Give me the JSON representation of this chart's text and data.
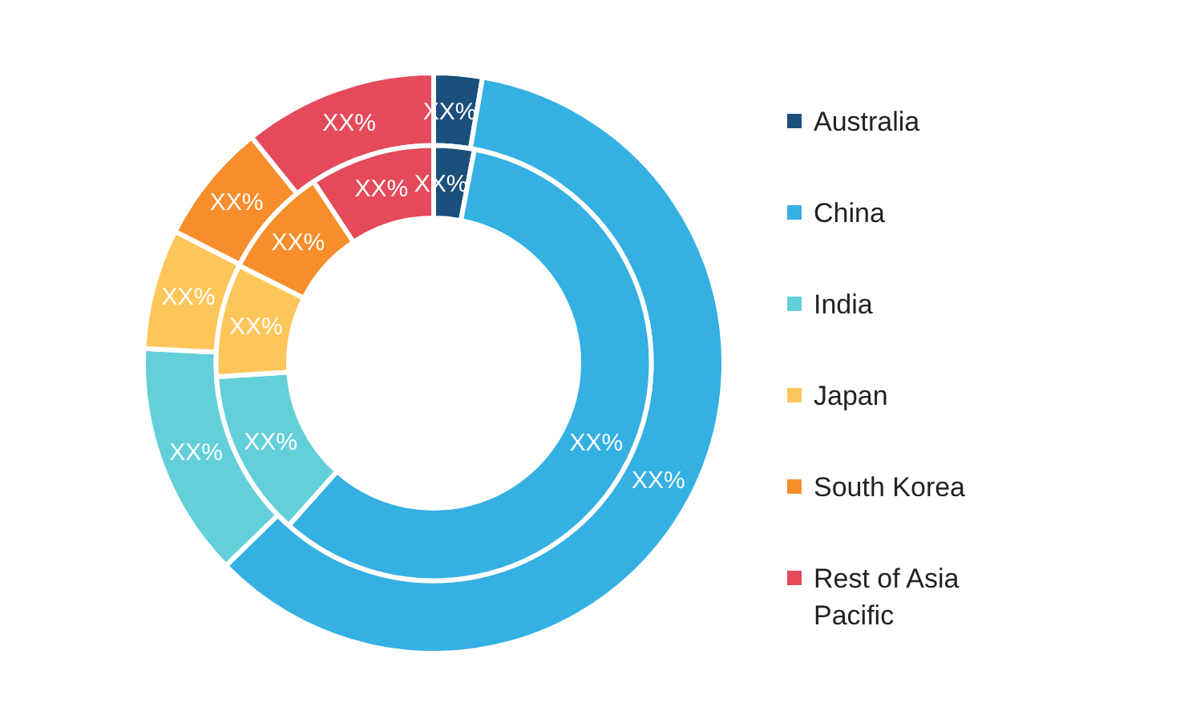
{
  "chart_data": {
    "type": "donut",
    "categories": [
      "Australia",
      "China",
      "India",
      "Japan",
      "South Korea",
      "Rest of Asia Pacific"
    ],
    "colors": [
      "#1b4f7c",
      "#35b0e2",
      "#63d0d9",
      "#fec65a",
      "#f68e2b",
      "#e44a5a"
    ],
    "series": [
      {
        "values": [
          2.7,
          60,
          13.1,
          6.7,
          6.7,
          10.8
        ],
        "value_labels": [
          "XX%",
          "XX%",
          "XX%",
          "XX%",
          "XX%",
          "XX%"
        ]
      },
      {
        "values": [
          3,
          58.6,
          12.4,
          8.4,
          8.3,
          9.3
        ],
        "value_labels": [
          "XX%",
          "XX%",
          "XX%",
          "XX%",
          "XX%",
          "XX%"
        ]
      }
    ],
    "legend": "right"
  }
}
